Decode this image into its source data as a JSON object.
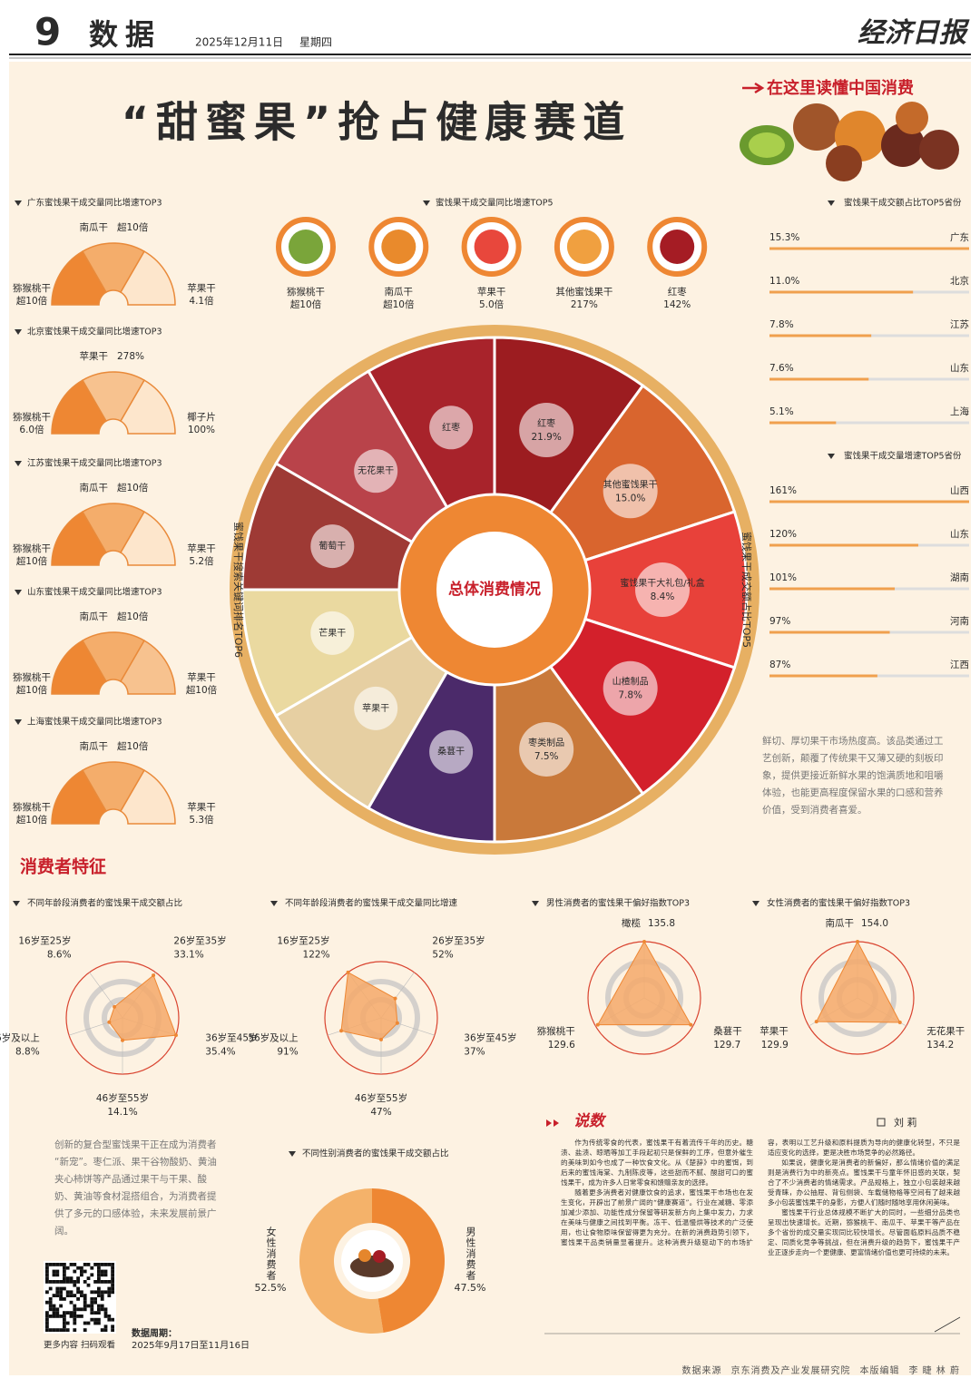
{
  "header": {
    "page_number": "9",
    "section": "数据",
    "date": "2025年12月11日",
    "weekday": "星期四",
    "masthead": "经济日报"
  },
  "title": "“甜蜜果”抢占健康赛道",
  "badge": "在这里读懂中国消费",
  "chart_data": [
    {
      "type": "gauge",
      "title": "广东蜜饯果干成交量同比增速TOP3",
      "categories": [
        "猕猴桃干",
        "南瓜干",
        "苹果干"
      ],
      "values": [
        10,
        10,
        4.1
      ],
      "value_labels": [
        "超10倍",
        "超10倍",
        "4.1倍"
      ],
      "colors": [
        "#ee8733",
        "#f4ad6b",
        "#fde6cc"
      ]
    },
    {
      "type": "gauge",
      "title": "北京蜜饯果干成交量同比增速TOP3",
      "categories": [
        "猕猴桃干",
        "苹果干",
        "椰子片"
      ],
      "values": [
        6,
        278,
        100
      ],
      "value_labels": [
        "6.0倍",
        "278%",
        "100%"
      ],
      "colors": [
        "#ee8733",
        "#f7c28f",
        "#fde6cc"
      ]
    },
    {
      "type": "gauge",
      "title": "江苏蜜饯果干成交量同比增速TOP3",
      "categories": [
        "猕猴桃干",
        "南瓜干",
        "苹果干"
      ],
      "values": [
        10,
        10,
        5.2
      ],
      "value_labels": [
        "超10倍",
        "超10倍",
        "5.2倍"
      ],
      "colors": [
        "#ee8733",
        "#f4ad6b",
        "#fde6cc"
      ]
    },
    {
      "type": "gauge",
      "title": "山东蜜饯果干成交量同比增速TOP3",
      "categories": [
        "猕猴桃干",
        "南瓜干",
        "苹果干"
      ],
      "values": [
        10,
        10,
        10
      ],
      "value_labels": [
        "超10倍",
        "超10倍",
        "超10倍"
      ],
      "colors": [
        "#ee8733",
        "#f4ad6b",
        "#f7c28f"
      ]
    },
    {
      "type": "gauge",
      "title": "上海蜜饯果干成交量同比增速TOP3",
      "categories": [
        "猕猴桃干",
        "南瓜干",
        "苹果干"
      ],
      "values": [
        10,
        10,
        5.3
      ],
      "value_labels": [
        "超10倍",
        "超10倍",
        "5.3倍"
      ],
      "colors": [
        "#ee8733",
        "#f4ad6b",
        "#fde6cc"
      ]
    },
    {
      "type": "ring",
      "title": "蜜饯果干成交量同比增速TOP5",
      "categories": [
        "猕猴桃干",
        "南瓜干",
        "苹果干",
        "其他蜜饯果干",
        "红枣"
      ],
      "values": [
        10,
        10,
        5,
        217,
        142
      ],
      "value_labels": [
        "超10倍",
        "超10倍",
        "5.0倍",
        "217%",
        "142%"
      ],
      "colors": [
        "#7aa53a",
        "#e98a2c",
        "#e8473c",
        "#f0a040",
        "#a51c24"
      ]
    },
    {
      "type": "wheel",
      "title": "总体消费情况",
      "left": {
        "title": "蜜饯果干搜索关键词排名TOP6",
        "categories": [
          "红枣",
          "无花果干",
          "葡萄干",
          "芒果干",
          "苹果干",
          "桑葚干"
        ],
        "colors": [
          "#a8232b",
          "#b9434a",
          "#9e3a35",
          "#ead9a0",
          "#e6cfa2",
          "#4b2a6a"
        ]
      },
      "right": {
        "title": "蜜饯果干成交额占比TOP5",
        "categories": [
          "红枣",
          "其他蜜饯果干",
          "蜜饯果干大礼包/礼盒",
          "山楂制品",
          "枣类制品"
        ],
        "values": [
          21.9,
          15,
          8.4,
          7.8,
          7.5
        ],
        "value_labels": [
          "21.9%",
          "15.0%",
          "8.4%",
          "7.8%",
          "7.5%"
        ],
        "colors": [
          "#9c1c20",
          "#d9652e",
          "#e8413a",
          "#d3202b",
          "#c9793a"
        ]
      }
    },
    {
      "type": "hbar",
      "title": "蜜饯果干成交额占比TOP5省份",
      "categories": [
        "广东",
        "北京",
        "江苏",
        "山东",
        "上海"
      ],
      "values": [
        15.3,
        11,
        7.8,
        7.6,
        5.1
      ],
      "value_labels": [
        "15.3%",
        "11.0%",
        "7.8%",
        "7.6%",
        "5.1%"
      ],
      "color": "#f0a04e"
    },
    {
      "type": "hbar",
      "title": "蜜饯果干成交量增速TOP5省份",
      "categories": [
        "山西",
        "山东",
        "湖南",
        "河南",
        "江西"
      ],
      "values": [
        161,
        120,
        101,
        97,
        87
      ],
      "value_labels": [
        "161%",
        "120%",
        "101%",
        "97%",
        "87%"
      ],
      "color": "#f0a04e"
    },
    {
      "type": "radar",
      "title": "不同年龄段消费者的蜜饯果干成交额占比",
      "categories": [
        "16岁至25岁",
        "26岁至35岁",
        "36岁至45岁",
        "46岁至55岁",
        "56岁及以上"
      ],
      "values": [
        8.6,
        33.1,
        35.4,
        14.1,
        8.8
      ],
      "value_labels": [
        "8.6%",
        "33.1%",
        "35.4%",
        "14.1%",
        "8.8%"
      ],
      "color": "#f4a96a"
    },
    {
      "type": "radar",
      "title": "不同年龄段消费者的蜜饯果干成交量同比增速",
      "categories": [
        "16岁至25岁",
        "26岁至35岁",
        "36岁至45岁",
        "46岁至55岁",
        "56岁及以上"
      ],
      "values": [
        122,
        52,
        37,
        47,
        91
      ],
      "value_labels": [
        "122%",
        "52%",
        "37%",
        "47%",
        "91%"
      ],
      "color": "#f4a96a"
    },
    {
      "type": "radar",
      "title": "男性消费者的蜜饯果干偏好指数TOP3",
      "categories": [
        "橄榄",
        "桑葚干",
        "猕猴桃干"
      ],
      "values": [
        135.8,
        129.7,
        129.6
      ],
      "color": "#f4a96a"
    },
    {
      "type": "radar",
      "title": "女性消费者的蜜饯果干偏好指数TOP3",
      "categories": [
        "南瓜干",
        "无花果干",
        "苹果干"
      ],
      "values": [
        154,
        134.2,
        129.9
      ],
      "value_labels": [
        "154.0",
        "134.2",
        "129.9"
      ],
      "color": "#f4a96a"
    },
    {
      "type": "donut",
      "title": "不同性别消费者的蜜饯果干成交额占比",
      "categories": [
        "女性消费者",
        "男性消费者"
      ],
      "values": [
        52.5,
        47.5
      ],
      "value_labels": [
        "52.5%",
        "47.5%"
      ],
      "colors": [
        "#f4b26a",
        "#ee8733"
      ]
    }
  ],
  "section": "消费者特征",
  "notes": {
    "right": "鲜切、厚切果干市场热度高。该品类通过工艺创新，颠覆了传统果干又薄又硬的刻板印象，提供更接近新鲜水果的饱满质地和咀嚼体验，也能更高程度保留水果的口感和营养价值，受到消费者喜爱。",
    "left": "创新的复合型蜜饯果干正在成为消费者“新宠”。枣仁派、果干谷物酸奶、黄油夹心柿饼等产品通过果干与干果、酸奶、黄油等食材混搭组合，为消费者提供了多元的口感体验，未来发展前景广阔。"
  },
  "article": {
    "heading": "说数",
    "author": "刘 莉",
    "paragraphs": [
      "作为传统零食的代表，蜜饯果干有着流传千年的历史。糖渍、盐渍、晾晒等加工手段起初只是保鲜的工序，但意外催生的美味到如今也成了一种饮食文化。从《楚辞》中的蜜饵，到后来的蜜饯海棠、九制陈皮等，这些甜而不腻、酸甜可口的蜜饯果干，成为许多人日常零食和馈赠亲友的选择。",
      "随着更多消费者对健康饮食的追求，蜜饯果干市场也在发生变化，开辟出了前景广阔的“健康赛道”。行业在减糖、零添加减少添加、功能性成分保留等研发新方向上集中发力，力求在美味与健康之间找到平衡。冻干、低温慢烘等技术的广泛使用，也让食物原味保留得更为充分。在新的消费趋势引领下，蜜饯果干品类销量显著提升。这种消费升级驱动下的市场扩容，表明以工艺升级和原料提质为导向的健康化转型，不只是适应变化的选择，更是决胜市场竞争的必然路径。",
      "如果说，健康化是消费者的新偏好，那么情绪价值的满足则是消费行为中的新亮点。蜜饯果干与童年怀旧感的关联，契合了不少消费者的情绪需求。产品规格上，独立小包装越来越受青睐，办公抽屉、背包侧袋、车载储物格等空间有了越来越多小包装蜜饯果干的身影，方便人们随时随地享用休闲美味。",
      "蜜饯果干行业总体规模不断扩大的同时，一些细分品类也呈现出快速增长。近期，猕猴桃干、南瓜干、苹果干等产品在多个省份的成交量实现同比较快增长。尽管面临原料品质不稳定、同质化竞争等挑战，但在消费升级的趋势下，蜜饯果干产业正逐步走向一个更健康、更富情绪价值也更可持续的未来。"
    ]
  },
  "qr_caption": "更多内容 扫码观看",
  "period": {
    "label": "数据周期：",
    "value": "2025年9月17日至11月16日"
  },
  "footer": {
    "source_label": "数据来源",
    "source": "京东消费及产业发展研究院",
    "editor_label": "本版编辑",
    "editors": "李 睫 林 蔚"
  }
}
